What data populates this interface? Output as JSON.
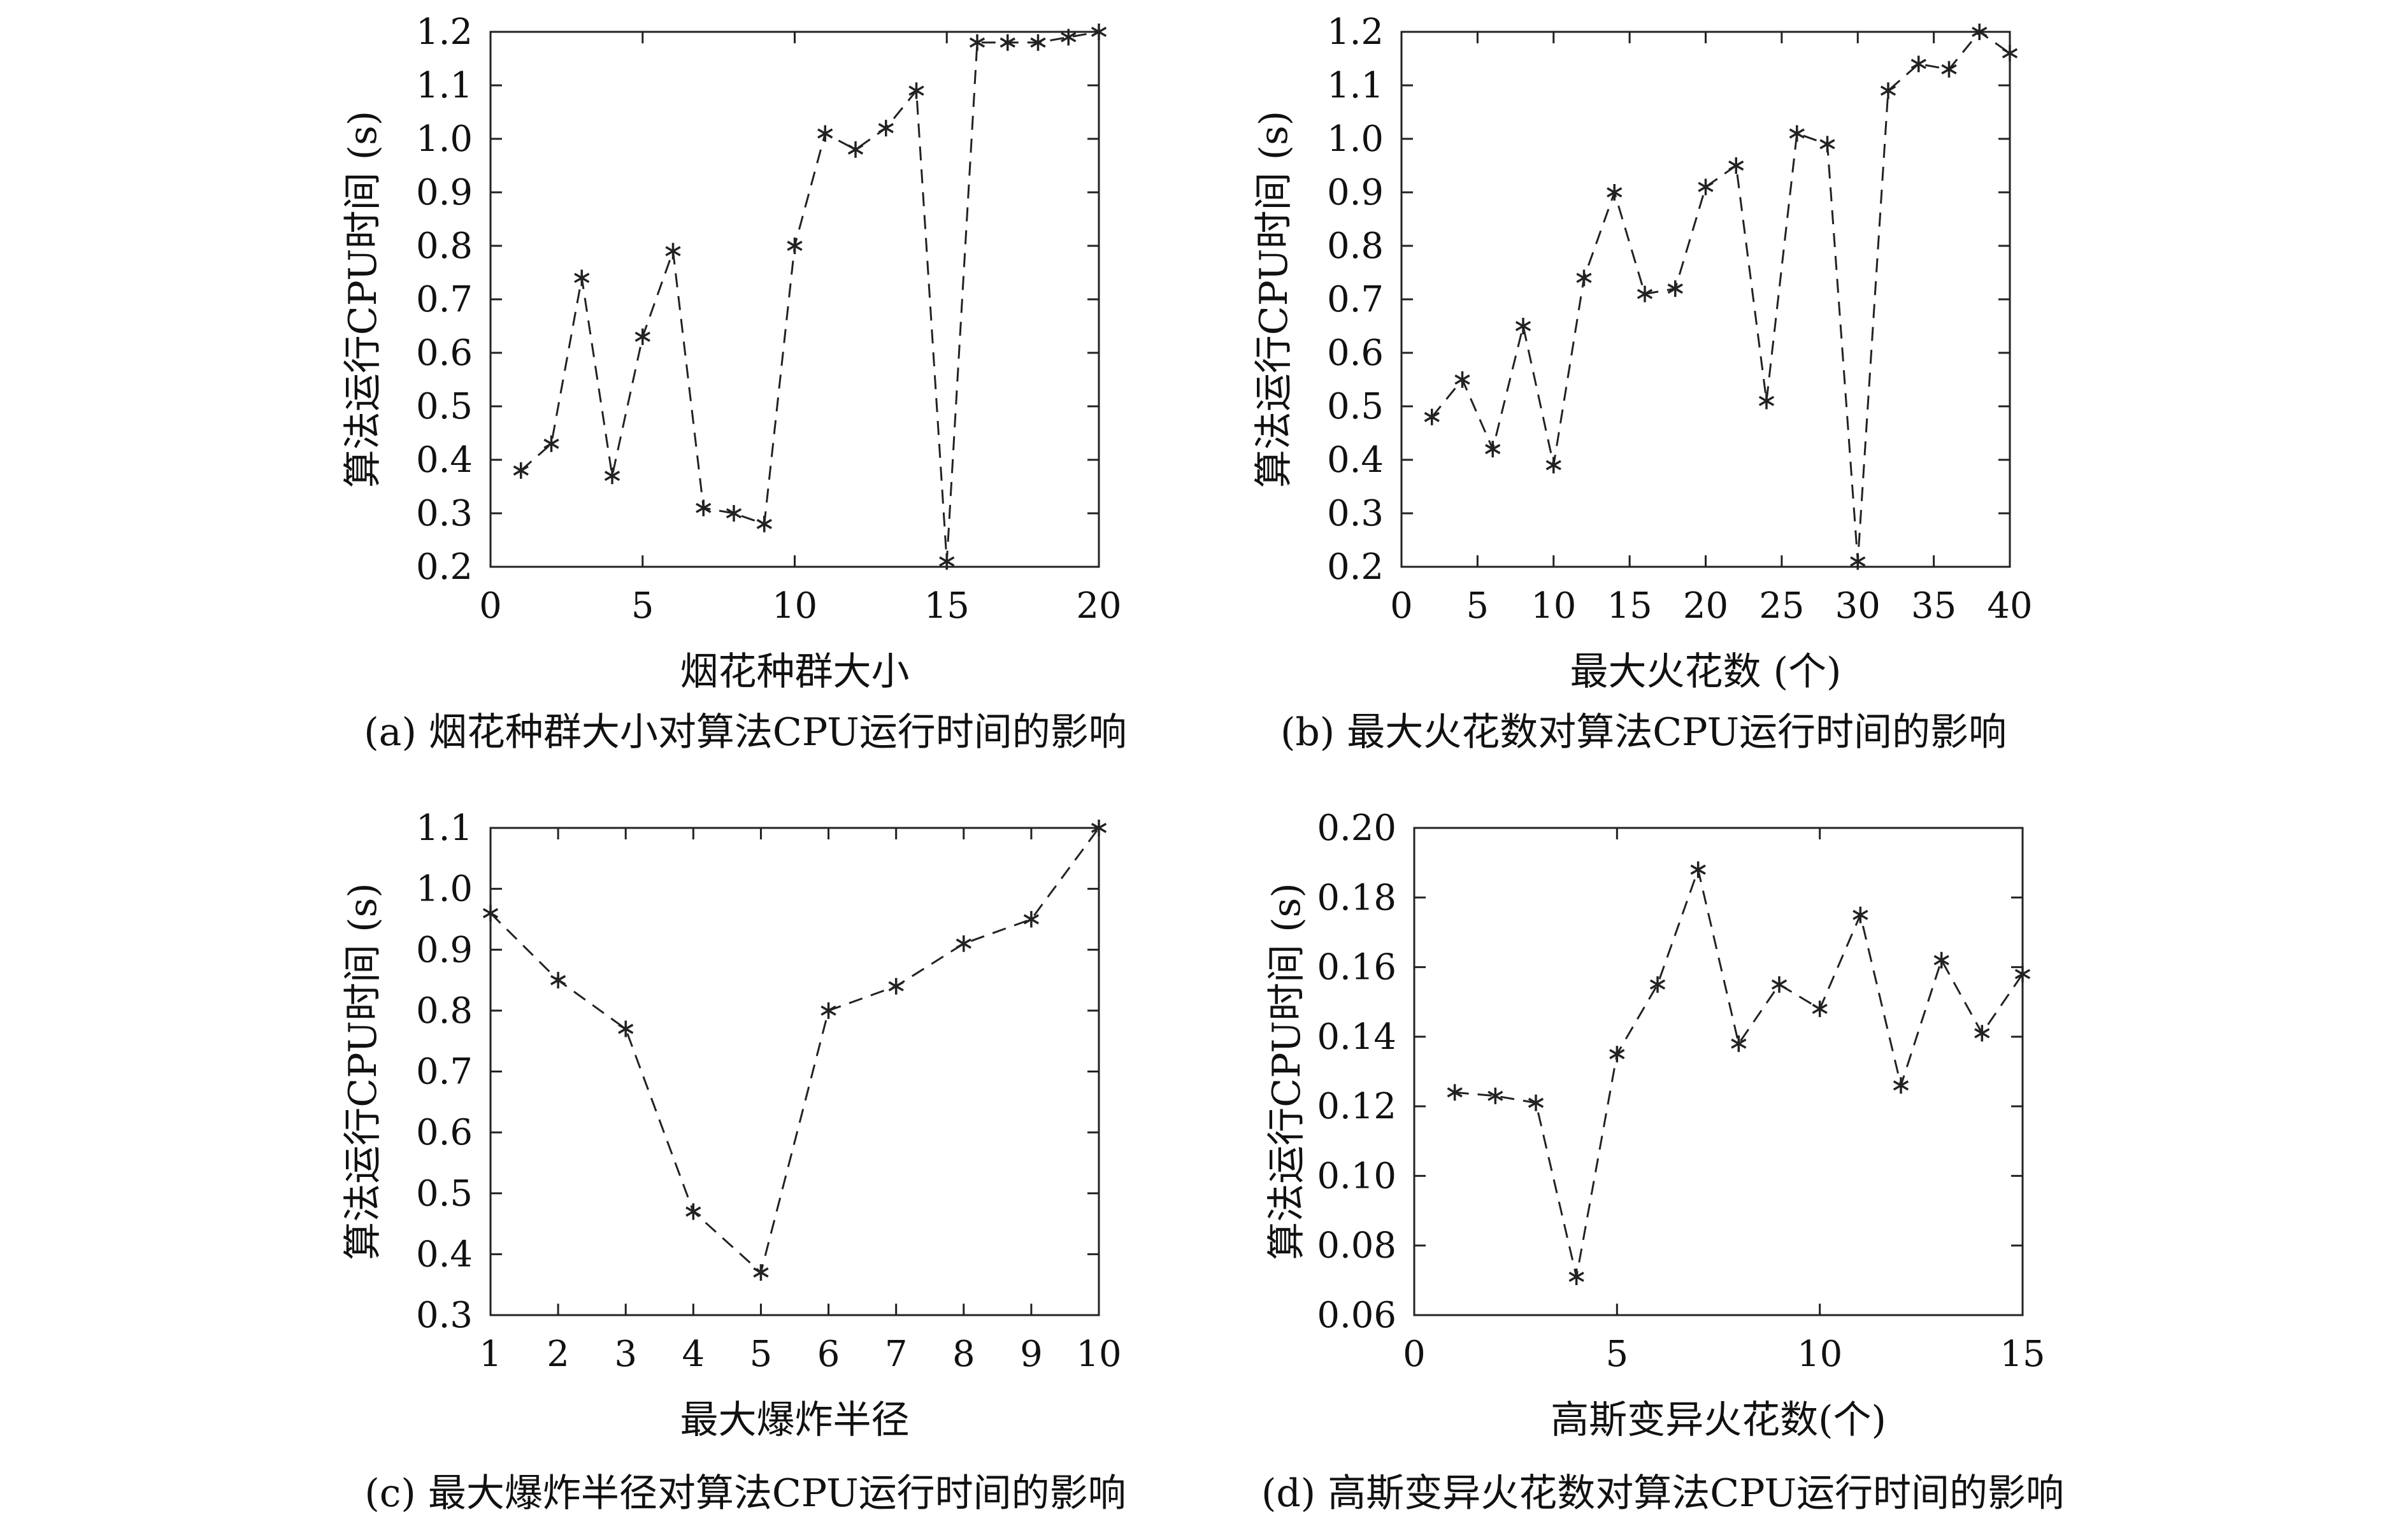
{
  "colors": {
    "line": "#222222",
    "axis": "#222222",
    "text": "#111111"
  },
  "chart_data": [
    {
      "id": "a",
      "type": "line",
      "caption": "(a) 烟花种群大小对算法CPU运行时间的影响",
      "xlabel": "烟花种群大小",
      "ylabel": "算法运行CPU时间 (s)",
      "xlim": [
        0,
        20
      ],
      "ylim": [
        0.2,
        1.2
      ],
      "xticks": [
        0,
        5,
        10,
        15,
        20
      ],
      "xtick_labels": [
        "0",
        "5",
        "10",
        "15",
        "20"
      ],
      "yticks": [
        0.2,
        0.3,
        0.4,
        0.5,
        0.6,
        0.7,
        0.8,
        0.9,
        1.0,
        1.1,
        1.2
      ],
      "ytick_labels": [
        "0.2",
        "0.3",
        "0.4",
        "0.5",
        "0.6",
        "0.7",
        "0.8",
        "0.9",
        "1.0",
        "1.1",
        "1.2"
      ],
      "grid": false,
      "line_style": "dashed",
      "marker": "asterisk",
      "x": [
        1,
        2,
        3,
        4,
        5,
        6,
        7,
        8,
        9,
        10,
        11,
        12,
        13,
        14,
        15,
        16,
        17,
        18,
        19,
        20
      ],
      "y": [
        0.38,
        0.43,
        0.74,
        0.37,
        0.63,
        0.79,
        0.31,
        0.3,
        0.28,
        0.8,
        1.01,
        0.98,
        1.02,
        1.09,
        0.21,
        1.18,
        1.18,
        1.18,
        1.19,
        1.2
      ]
    },
    {
      "id": "b",
      "type": "line",
      "caption": "(b) 最大火花数对算法CPU运行时间的影响",
      "xlabel": "最大火花数 (个)",
      "ylabel": "算法运行CPU时间 (s)",
      "xlim": [
        0,
        40
      ],
      "ylim": [
        0.2,
        1.2
      ],
      "xticks": [
        0,
        5,
        10,
        15,
        20,
        25,
        30,
        35,
        40
      ],
      "xtick_labels": [
        "0",
        "5",
        "10",
        "15",
        "20",
        "25",
        "30",
        "35",
        "40"
      ],
      "yticks": [
        0.2,
        0.3,
        0.4,
        0.5,
        0.6,
        0.7,
        0.8,
        0.9,
        1.0,
        1.1,
        1.2
      ],
      "ytick_labels": [
        "0.2",
        "0.3",
        "0.4",
        "0.5",
        "0.6",
        "0.7",
        "0.8",
        "0.9",
        "1.0",
        "1.1",
        "1.2"
      ],
      "grid": false,
      "line_style": "dashed",
      "marker": "asterisk",
      "x": [
        2,
        4,
        6,
        8,
        10,
        12,
        14,
        16,
        18,
        20,
        22,
        24,
        26,
        28,
        30,
        32,
        34,
        36,
        38,
        40
      ],
      "y": [
        0.48,
        0.55,
        0.42,
        0.65,
        0.39,
        0.74,
        0.9,
        0.71,
        0.72,
        0.91,
        0.95,
        0.51,
        1.01,
        0.99,
        0.21,
        1.09,
        1.14,
        1.13,
        1.2,
        1.16
      ]
    },
    {
      "id": "c",
      "type": "line",
      "caption": "(c) 最大爆炸半径对算法CPU运行时间的影响",
      "xlabel": "最大爆炸半径",
      "ylabel": "算法运行CPU时间 (s)",
      "xlim": [
        1,
        10
      ],
      "ylim": [
        0.3,
        1.1
      ],
      "xticks": [
        1,
        2,
        3,
        4,
        5,
        6,
        7,
        8,
        9,
        10
      ],
      "xtick_labels": [
        "1",
        "2",
        "3",
        "4",
        "5",
        "6",
        "7",
        "8",
        "9",
        "10"
      ],
      "yticks": [
        0.3,
        0.4,
        0.5,
        0.6,
        0.7,
        0.8,
        0.9,
        1.0,
        1.1
      ],
      "ytick_labels": [
        "0.3",
        "0.4",
        "0.5",
        "0.6",
        "0.7",
        "0.8",
        "0.9",
        "1.0",
        "1.1"
      ],
      "grid": false,
      "line_style": "dashed",
      "marker": "asterisk",
      "x": [
        1,
        2,
        3,
        4,
        5,
        6,
        7,
        8,
        9,
        10
      ],
      "y": [
        0.96,
        0.85,
        0.77,
        0.47,
        0.37,
        0.8,
        0.84,
        0.91,
        0.95,
        1.1
      ]
    },
    {
      "id": "d",
      "type": "line",
      "caption": "(d) 高斯变异火花数对算法CPU运行时间的影响",
      "xlabel": "高斯变异火花数(个)",
      "ylabel": "算法运行CPU时间 (s)",
      "xlim": [
        0,
        15
      ],
      "ylim": [
        0.06,
        0.2
      ],
      "xticks": [
        0,
        5,
        10,
        15
      ],
      "xtick_labels": [
        "0",
        "5",
        "10",
        "15"
      ],
      "yticks": [
        0.06,
        0.08,
        0.1,
        0.12,
        0.14,
        0.16,
        0.18,
        0.2
      ],
      "ytick_labels": [
        "0.06",
        "0.08",
        "0.10",
        "0.12",
        "0.14",
        "0.16",
        "0.18",
        "0.20"
      ],
      "grid": false,
      "line_style": "dashed",
      "marker": "asterisk",
      "x": [
        1,
        2,
        3,
        4,
        5,
        6,
        7,
        8,
        9,
        10,
        11,
        12,
        13,
        14,
        15
      ],
      "y": [
        0.124,
        0.123,
        0.121,
        0.071,
        0.135,
        0.155,
        0.188,
        0.138,
        0.155,
        0.148,
        0.175,
        0.126,
        0.162,
        0.141,
        0.158
      ]
    }
  ]
}
